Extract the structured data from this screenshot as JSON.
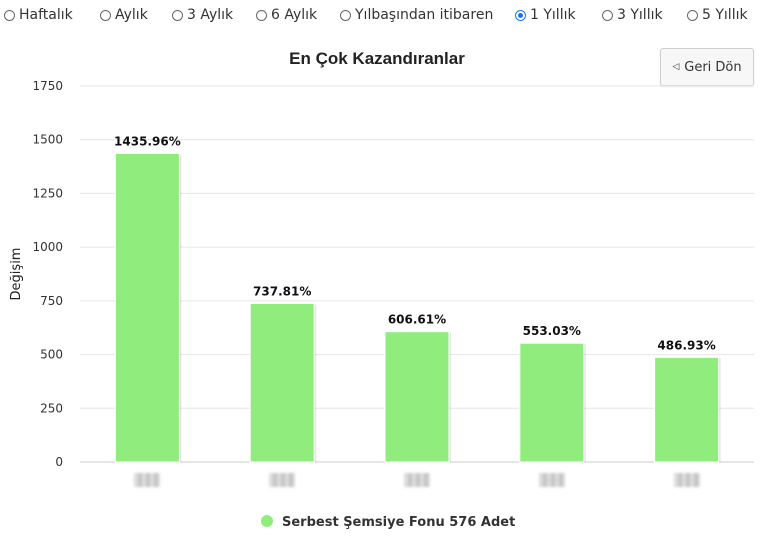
{
  "period_options": [
    {
      "label": "Haftalık",
      "checked": false
    },
    {
      "label": "Aylık",
      "checked": false
    },
    {
      "label": "3 Aylık",
      "checked": false
    },
    {
      "label": "6 Aylık",
      "checked": false
    },
    {
      "label": "Yılbaşından itibaren",
      "checked": false
    },
    {
      "label": "1 Yıllık",
      "checked": true
    },
    {
      "label": "3 Yıllık",
      "checked": false
    },
    {
      "label": "5 Yıllık",
      "checked": false
    }
  ],
  "back_button": {
    "label": "Geri Dön",
    "icon": "triangle-left-icon"
  },
  "chart_data": {
    "type": "bar",
    "title": "En Çok Kazandıranlar",
    "ylabel": "Değişim",
    "xlabel": "",
    "ylim": [
      0,
      1750
    ],
    "yticks": [
      0,
      250,
      500,
      750,
      1000,
      1250,
      1500,
      1750
    ],
    "grid": true,
    "categories": [
      "",
      "",
      "",
      "",
      ""
    ],
    "series": [
      {
        "name": "Serbest Şemsiye Fonu 576 Adet",
        "color": "#90ed7d",
        "values": [
          1435.96,
          737.81,
          606.61,
          553.03,
          486.93
        ],
        "data_labels": [
          "1435.96%",
          "737.81%",
          "606.61%",
          "553.03%",
          "486.93%"
        ]
      }
    ],
    "legend_position": "bottom-center"
  }
}
